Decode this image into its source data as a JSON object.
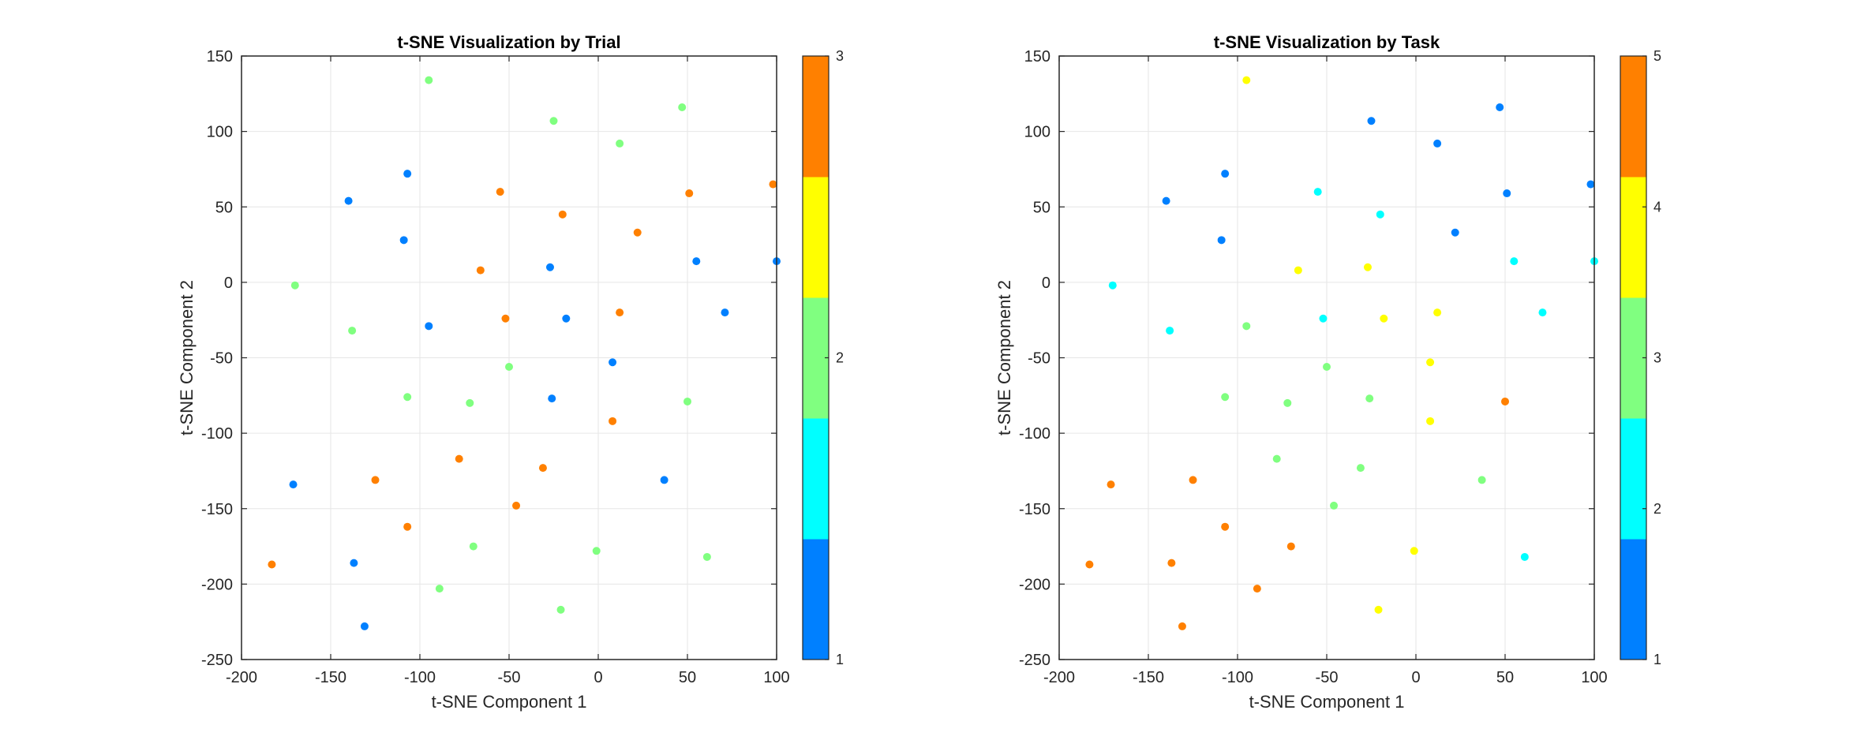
{
  "chart_data": [
    {
      "type": "scatter",
      "title": "t-SNE Visualization by Trial",
      "xlabel": "t-SNE Component 1",
      "ylabel": "t-SNE Component 2",
      "xlim": [
        -200,
        100
      ],
      "ylim": [
        -250,
        150
      ],
      "xticks": [
        -200,
        -150,
        -100,
        -50,
        0,
        50,
        100
      ],
      "yticks": [
        -250,
        -200,
        -150,
        -100,
        -50,
        0,
        50,
        100,
        150
      ],
      "grid": true,
      "colorbar": {
        "range": [
          1,
          3
        ],
        "ticks": [
          1,
          2,
          3
        ],
        "colors": [
          "#0080ff",
          "#00ffff",
          "#80ff80",
          "#ffff00",
          "#ff8000"
        ]
      },
      "color_by_value": {
        "1": "#0080ff",
        "2": "#80ff80",
        "3": "#ff8000"
      },
      "points": [
        {
          "x": -170,
          "y": -2,
          "c": 2
        },
        {
          "x": -95,
          "y": 134,
          "c": 2
        },
        {
          "x": -25,
          "y": 107,
          "c": 2
        },
        {
          "x": 47,
          "y": 116,
          "c": 2
        },
        {
          "x": 12,
          "y": 92,
          "c": 2
        },
        {
          "x": -107,
          "y": 72,
          "c": 1
        },
        {
          "x": -140,
          "y": 54,
          "c": 1
        },
        {
          "x": -55,
          "y": 60,
          "c": 3
        },
        {
          "x": -20,
          "y": 45,
          "c": 3
        },
        {
          "x": 51,
          "y": 59,
          "c": 3
        },
        {
          "x": 98,
          "y": 65,
          "c": 3
        },
        {
          "x": -109,
          "y": 28,
          "c": 1
        },
        {
          "x": 22,
          "y": 33,
          "c": 3
        },
        {
          "x": 55,
          "y": 14,
          "c": 1
        },
        {
          "x": 100,
          "y": 14,
          "c": 1
        },
        {
          "x": -66,
          "y": 8,
          "c": 3
        },
        {
          "x": -27,
          "y": 10,
          "c": 1
        },
        {
          "x": -138,
          "y": -32,
          "c": 2
        },
        {
          "x": -95,
          "y": -29,
          "c": 1
        },
        {
          "x": -52,
          "y": -24,
          "c": 3
        },
        {
          "x": -18,
          "y": -24,
          "c": 1
        },
        {
          "x": 12,
          "y": -20,
          "c": 3
        },
        {
          "x": 71,
          "y": -20,
          "c": 1
        },
        {
          "x": 8,
          "y": -53,
          "c": 1
        },
        {
          "x": -50,
          "y": -56,
          "c": 2
        },
        {
          "x": -107,
          "y": -76,
          "c": 2
        },
        {
          "x": -72,
          "y": -80,
          "c": 2
        },
        {
          "x": -26,
          "y": -77,
          "c": 1
        },
        {
          "x": 50,
          "y": -79,
          "c": 2
        },
        {
          "x": 8,
          "y": -92,
          "c": 3
        },
        {
          "x": -78,
          "y": -117,
          "c": 3
        },
        {
          "x": -31,
          "y": -123,
          "c": 3
        },
        {
          "x": -125,
          "y": -131,
          "c": 3
        },
        {
          "x": 37,
          "y": -131,
          "c": 1
        },
        {
          "x": -171,
          "y": -134,
          "c": 1
        },
        {
          "x": -46,
          "y": -148,
          "c": 3
        },
        {
          "x": -107,
          "y": -162,
          "c": 3
        },
        {
          "x": -70,
          "y": -175,
          "c": 2
        },
        {
          "x": -1,
          "y": -178,
          "c": 2
        },
        {
          "x": 61,
          "y": -182,
          "c": 2
        },
        {
          "x": -183,
          "y": -187,
          "c": 3
        },
        {
          "x": -137,
          "y": -186,
          "c": 1
        },
        {
          "x": -89,
          "y": -203,
          "c": 2
        },
        {
          "x": -21,
          "y": -217,
          "c": 2
        },
        {
          "x": -131,
          "y": -228,
          "c": 1
        }
      ]
    },
    {
      "type": "scatter",
      "title": "t-SNE Visualization by Task",
      "xlabel": "t-SNE Component 1",
      "ylabel": "t-SNE Component 2",
      "xlim": [
        -200,
        100
      ],
      "ylim": [
        -250,
        150
      ],
      "xticks": [
        -200,
        -150,
        -100,
        -50,
        0,
        50,
        100
      ],
      "yticks": [
        -250,
        -200,
        -150,
        -100,
        -50,
        0,
        50,
        100,
        150
      ],
      "grid": true,
      "colorbar": {
        "range": [
          1,
          5
        ],
        "ticks": [
          1,
          2,
          3,
          4,
          5
        ],
        "colors": [
          "#0080ff",
          "#00ffff",
          "#80ff80",
          "#ffff00",
          "#ff8000"
        ]
      },
      "color_by_value": {
        "1": "#0080ff",
        "2": "#00ffff",
        "3": "#80ff80",
        "4": "#ffff00",
        "5": "#ff8000"
      },
      "points": [
        {
          "x": -170,
          "y": -2,
          "c": 2
        },
        {
          "x": -95,
          "y": 134,
          "c": 4
        },
        {
          "x": -25,
          "y": 107,
          "c": 1
        },
        {
          "x": 47,
          "y": 116,
          "c": 1
        },
        {
          "x": 12,
          "y": 92,
          "c": 1
        },
        {
          "x": -107,
          "y": 72,
          "c": 1
        },
        {
          "x": -140,
          "y": 54,
          "c": 1
        },
        {
          "x": -55,
          "y": 60,
          "c": 2
        },
        {
          "x": -20,
          "y": 45,
          "c": 2
        },
        {
          "x": 51,
          "y": 59,
          "c": 1
        },
        {
          "x": 98,
          "y": 65,
          "c": 1
        },
        {
          "x": -109,
          "y": 28,
          "c": 1
        },
        {
          "x": 22,
          "y": 33,
          "c": 1
        },
        {
          "x": 55,
          "y": 14,
          "c": 2
        },
        {
          "x": 100,
          "y": 14,
          "c": 2
        },
        {
          "x": -66,
          "y": 8,
          "c": 4
        },
        {
          "x": -27,
          "y": 10,
          "c": 4
        },
        {
          "x": -138,
          "y": -32,
          "c": 2
        },
        {
          "x": -95,
          "y": -29,
          "c": 3
        },
        {
          "x": -52,
          "y": -24,
          "c": 2
        },
        {
          "x": -18,
          "y": -24,
          "c": 4
        },
        {
          "x": 12,
          "y": -20,
          "c": 4
        },
        {
          "x": 71,
          "y": -20,
          "c": 2
        },
        {
          "x": 8,
          "y": -53,
          "c": 4
        },
        {
          "x": -50,
          "y": -56,
          "c": 3
        },
        {
          "x": -107,
          "y": -76,
          "c": 3
        },
        {
          "x": -72,
          "y": -80,
          "c": 3
        },
        {
          "x": -26,
          "y": -77,
          "c": 3
        },
        {
          "x": 50,
          "y": -79,
          "c": 5
        },
        {
          "x": 8,
          "y": -92,
          "c": 4
        },
        {
          "x": -78,
          "y": -117,
          "c": 3
        },
        {
          "x": -31,
          "y": -123,
          "c": 3
        },
        {
          "x": -125,
          "y": -131,
          "c": 5
        },
        {
          "x": 37,
          "y": -131,
          "c": 3
        },
        {
          "x": -171,
          "y": -134,
          "c": 5
        },
        {
          "x": -46,
          "y": -148,
          "c": 3
        },
        {
          "x": -107,
          "y": -162,
          "c": 5
        },
        {
          "x": -70,
          "y": -175,
          "c": 5
        },
        {
          "x": -1,
          "y": -178,
          "c": 4
        },
        {
          "x": 61,
          "y": -182,
          "c": 2
        },
        {
          "x": -183,
          "y": -187,
          "c": 5
        },
        {
          "x": -137,
          "y": -186,
          "c": 5
        },
        {
          "x": -89,
          "y": -203,
          "c": 5
        },
        {
          "x": -21,
          "y": -217,
          "c": 4
        },
        {
          "x": -131,
          "y": -228,
          "c": 5
        }
      ]
    }
  ]
}
